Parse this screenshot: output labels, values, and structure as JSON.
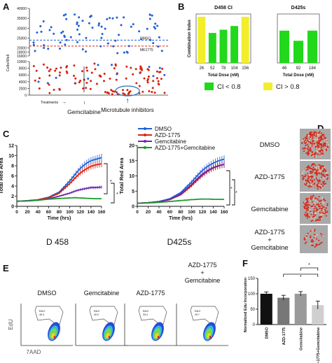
{
  "panel_labels": {
    "A": "A",
    "B": "B",
    "C": "C",
    "D": "D",
    "E": "E",
    "F": "F"
  },
  "colors": {
    "blue": "#1f5fd6",
    "red": "#d9230f",
    "purple": "#6a2aa8",
    "green": "#1a9a2a",
    "yellow": "#f2ee2a",
    "lime": "#22d81b",
    "gray_dark": "#555555",
    "gray_light": "#cfcfcf"
  },
  "panel_a": {
    "ylabel": "Cells/Well",
    "dmso_label": "DMSO",
    "mk_label": "MK1775",
    "treatments_label": "Treatments",
    "gem_label": "Gemcitabine",
    "micro_label": "Microtubule inhibitors",
    "micro_arrow": "↑",
    "treatments_arrow": "→",
    "yticks": [
      "0",
      "2000",
      "4000",
      "6000",
      "8000",
      "10000",
      "16000",
      "18000",
      "20000",
      "25000",
      "30000",
      "35000",
      "40000"
    ],
    "dmso_level": 24000,
    "mk_level": 21000
  },
  "panel_b": {
    "legend": [
      {
        "label": "CI < 0.8"
      },
      {
        "label": "CI > 0.8"
      }
    ]
  },
  "panel_c": {
    "left_title": "D 458",
    "right_title": "D425s",
    "legend": [
      "DMSO",
      "AZD-1775",
      "Gemcitabine",
      "AZD-1775+Gemcitabine"
    ],
    "sig": "*"
  },
  "panel_d": {
    "labels": [
      "DMSO",
      "AZD-1775",
      "Gemcitabine",
      "AZD-1775\n+\nGemcitabine"
    ],
    "label_lines": [
      [
        "DMSO"
      ],
      [
        "AZD-1775"
      ],
      [
        "Gemcitabine"
      ],
      [
        "AZD-1775",
        "+",
        "Gemcitabine"
      ]
    ]
  },
  "panel_e": {
    "titles": [
      [
        "DMSO"
      ],
      [
        "Gemcitabine"
      ],
      [
        "AZD-1775"
      ],
      [
        "AZD-1775",
        "+",
        "Gemcitabine"
      ]
    ],
    "ylabel": "EdU",
    "xlabel": "7AAD",
    "gate_values": [
      "EdU+\n46.3",
      "EdU+\n40.0",
      "EdU+\n33.4",
      "EdU+\n29.7"
    ]
  },
  "chart_data": [
    {
      "type": "scatter",
      "title": "",
      "ylabel": "Cells/Well",
      "xlabel": "Treatments",
      "ylim": [
        0,
        40000
      ],
      "note": "broken y-axis between 10000 and 16000",
      "series": [
        {
          "name": "DMSO",
          "color": "#1f5fd6",
          "reference": 24000
        },
        {
          "name": "MK1775",
          "color": "#d9230f",
          "reference": 21000
        }
      ]
    },
    {
      "type": "bar",
      "title": "D458 CI",
      "xlabel": "Total Dose (nM)",
      "ylabel": "Combination Index",
      "ylim": [
        0,
        1.0
      ],
      "categories": [
        "26",
        "52",
        "78",
        "104",
        "156"
      ],
      "values": [
        1.0,
        0.65,
        0.72,
        0.8,
        1.0
      ],
      "colors": [
        "#f2ee2a",
        "#22d81b",
        "#22d81b",
        "#22d81b",
        "#f2ee2a"
      ]
    },
    {
      "type": "bar",
      "title": "D425s",
      "xlabel": "Total Dose (nM)",
      "ylabel": "",
      "ylim": [
        0,
        1.0
      ],
      "categories": [
        "46",
        "92",
        "184"
      ],
      "values": [
        0.7,
        0.48,
        0.7
      ],
      "colors": [
        "#22d81b",
        "#22d81b",
        "#22d81b"
      ]
    },
    {
      "type": "line",
      "title": "",
      "xlabel": "Time (hrs)",
      "ylabel": "Total Red Area",
      "xlim": [
        0,
        160
      ],
      "ylim": [
        0,
        12
      ],
      "yticks": [
        0,
        2,
        4,
        6,
        8,
        10,
        12
      ],
      "xticks": [
        0,
        20,
        40,
        60,
        80,
        100,
        120,
        140,
        160
      ],
      "series": [
        {
          "name": "DMSO",
          "color": "#1f5fd6",
          "x": [
            0,
            20,
            40,
            60,
            80,
            100,
            110,
            120,
            130,
            140,
            150,
            160
          ],
          "y": [
            1.0,
            1.1,
            1.3,
            1.8,
            2.8,
            5.0,
            6.3,
            7.5,
            8.4,
            9.0,
            9.3,
            9.6
          ]
        },
        {
          "name": "AZD-1775",
          "color": "#d9230f",
          "x": [
            0,
            20,
            40,
            60,
            80,
            100,
            110,
            120,
            130,
            140,
            150,
            160
          ],
          "y": [
            1.0,
            1.1,
            1.3,
            1.7,
            2.6,
            4.5,
            5.6,
            6.6,
            7.3,
            7.9,
            8.2,
            8.4
          ]
        },
        {
          "name": "Gemcitabine",
          "color": "#6a2aa8",
          "x": [
            0,
            20,
            40,
            60,
            80,
            100,
            110,
            120,
            130,
            140,
            150,
            160
          ],
          "y": [
            1.0,
            1.1,
            1.2,
            1.5,
            2.0,
            2.6,
            3.0,
            3.3,
            3.5,
            3.7,
            3.7,
            3.8
          ]
        },
        {
          "name": "AZD-1775+Gemcitabine",
          "color": "#1a9a2a",
          "x": [
            0,
            20,
            40,
            60,
            80,
            100,
            110,
            120,
            130,
            140,
            150,
            160
          ],
          "y": [
            1.0,
            1.05,
            1.2,
            1.4,
            1.55,
            1.65,
            1.7,
            1.65,
            1.6,
            1.55,
            1.5,
            1.5
          ]
        }
      ]
    },
    {
      "type": "line",
      "title": "",
      "xlabel": "Time (hrs)",
      "ylabel": "Total Red Area",
      "xlim": [
        0,
        160
      ],
      "ylim": [
        0,
        20
      ],
      "yticks": [
        0,
        5,
        10,
        15,
        20
      ],
      "xticks": [
        0,
        20,
        40,
        60,
        80,
        100,
        120,
        140,
        160
      ],
      "series": [
        {
          "name": "DMSO",
          "color": "#1f5fd6",
          "x": [
            0,
            20,
            40,
            60,
            80,
            100,
            110,
            120,
            130,
            140,
            150,
            160
          ],
          "y": [
            1.0,
            1.2,
            1.6,
            2.5,
            4.5,
            8.0,
            10.0,
            11.8,
            13.2,
            14.2,
            15.0,
            15.5
          ]
        },
        {
          "name": "AZD-1775",
          "color": "#d9230f",
          "x": [
            0,
            20,
            40,
            60,
            80,
            100,
            110,
            120,
            130,
            140,
            150,
            160
          ],
          "y": [
            1.0,
            1.2,
            1.5,
            2.2,
            3.8,
            6.8,
            8.6,
            10.2,
            11.6,
            12.6,
            13.3,
            13.8
          ]
        },
        {
          "name": "Gemcitabine",
          "color": "#6a2aa8",
          "x": [
            0,
            20,
            40,
            60,
            80,
            100,
            110,
            120,
            130,
            140,
            150,
            160
          ],
          "y": [
            1.0,
            1.2,
            1.5,
            2.3,
            4.0,
            7.2,
            9.0,
            10.6,
            11.8,
            12.8,
            13.4,
            13.8
          ]
        },
        {
          "name": "AZD-1775+Gemcitabine",
          "color": "#1a9a2a",
          "x": [
            0,
            20,
            40,
            60,
            80,
            100,
            110,
            120,
            130,
            140,
            150,
            160
          ],
          "y": [
            1.0,
            1.1,
            1.3,
            1.6,
            1.9,
            2.2,
            2.3,
            2.4,
            2.4,
            2.3,
            2.3,
            2.3
          ]
        }
      ]
    },
    {
      "type": "bar",
      "title": "",
      "ylabel": "Normalized Edu Incorporation",
      "xlabel": "",
      "ylim": [
        0,
        150
      ],
      "yticks": [
        0,
        50,
        100,
        150
      ],
      "categories": [
        "DMSO",
        "AZD-1775",
        "Gemcitabine",
        "AZD-1775+Gemcitabine"
      ],
      "values": [
        100,
        87,
        100,
        63
      ],
      "errors": [
        6,
        8,
        7,
        13
      ],
      "colors": [
        "#111111",
        "#777777",
        "#9a9a9a",
        "#cfcfcf"
      ],
      "sig": "*"
    }
  ]
}
